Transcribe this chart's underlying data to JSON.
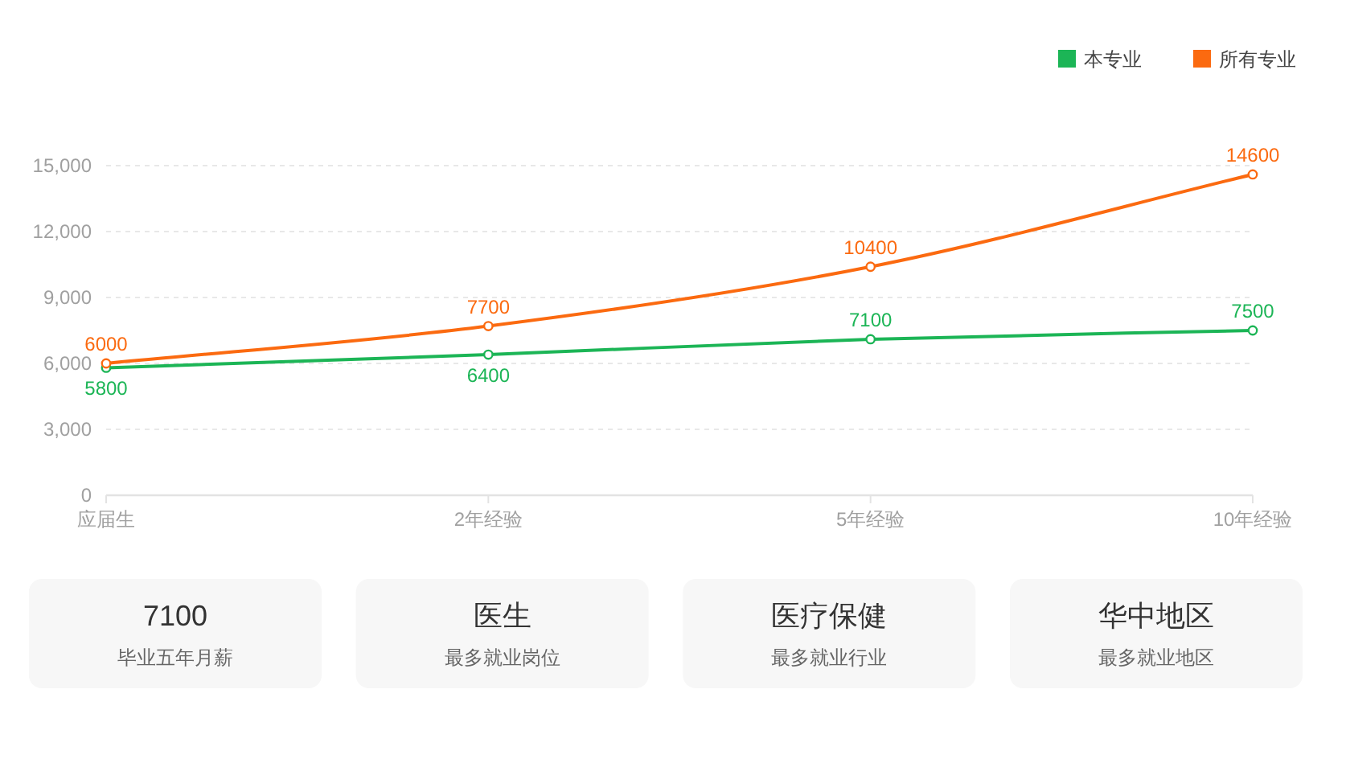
{
  "chart_data": [
    {
      "type": "line",
      "categories": [
        "应届生",
        "2年经验",
        "5年经验",
        "10年经验"
      ],
      "series": [
        {
          "name": "本专业",
          "color": "#1cb556",
          "values": [
            5800,
            6400,
            7100,
            7500
          ]
        },
        {
          "name": "所有专业",
          "color": "#fb6a10",
          "values": [
            6000,
            7700,
            10400,
            14600
          ]
        }
      ],
      "ylim": [
        0,
        15000
      ],
      "yticks": [
        0,
        {
          "value": 3000,
          "label": "3,000"
        },
        {
          "value": 6000,
          "label": "6,000"
        },
        {
          "value": 9000,
          "label": "9,000"
        },
        {
          "value": 12000,
          "label": "12,000"
        },
        {
          "value": 15000,
          "label": "15,000"
        }
      ],
      "grid": "y",
      "legend": "top right",
      "marker": "circle",
      "line_style": "solid",
      "data_labels": true
    },
    {
      "type": "other",
      "title": "7100",
      "subtitle": "毕业五年月薪"
    },
    {
      "type": "other",
      "title": "医生",
      "subtitle": "最多就业岗位"
    },
    {
      "type": "other",
      "title": "医疗保健",
      "subtitle": "最多就业行业"
    },
    {
      "type": "other",
      "title": "华中地区",
      "subtitle": "最多就业地区"
    }
  ]
}
